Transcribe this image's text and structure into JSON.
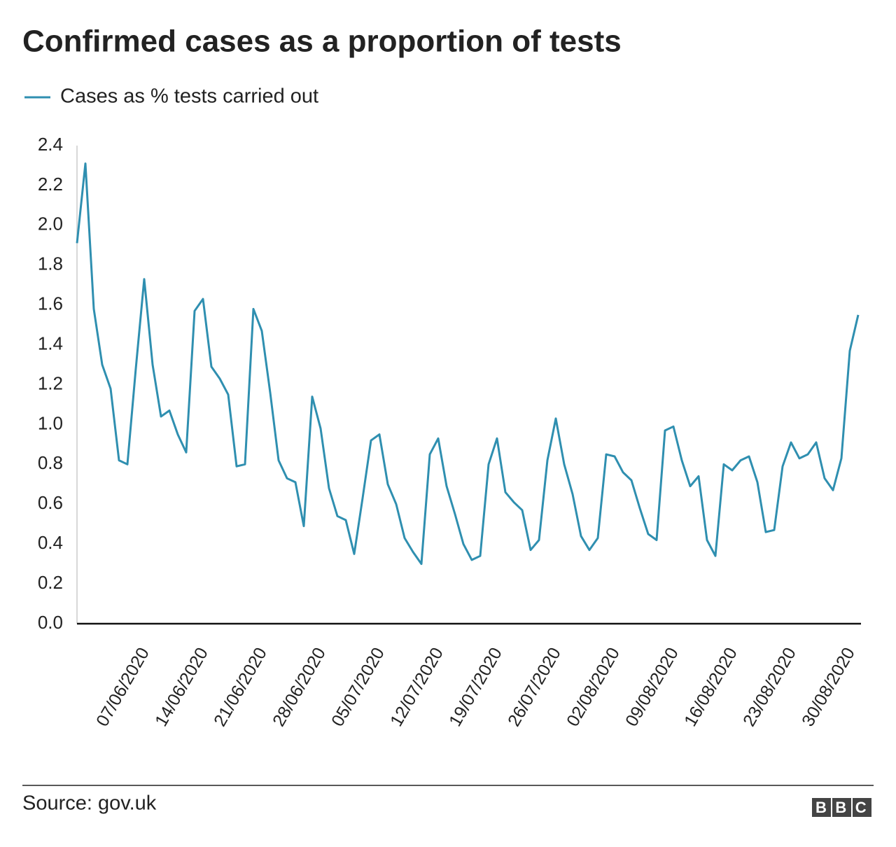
{
  "chart_data": {
    "type": "line",
    "title": "Confirmed cases as a proportion of tests",
    "source": "Source: gov.uk",
    "logo": "BBC",
    "categories": [
      null,
      null,
      null,
      null,
      null,
      null,
      null,
      null,
      "07/06/2020",
      null,
      null,
      null,
      null,
      null,
      null,
      "14/06/2020",
      null,
      null,
      null,
      null,
      null,
      null,
      "21/06/2020",
      null,
      null,
      null,
      null,
      null,
      null,
      "28/06/2020",
      null,
      null,
      null,
      null,
      null,
      null,
      "05/07/2020",
      null,
      null,
      null,
      null,
      null,
      null,
      "12/07/2020",
      null,
      null,
      null,
      null,
      null,
      null,
      "19/07/2020",
      null,
      null,
      null,
      null,
      null,
      null,
      "26/07/2020",
      null,
      null,
      null,
      null,
      null,
      null,
      "02/08/2020",
      null,
      null,
      null,
      null,
      null,
      null,
      "09/08/2020",
      null,
      null,
      null,
      null,
      null,
      null,
      "16/08/2020",
      null,
      null,
      null,
      null,
      null,
      null,
      "23/08/2020",
      null,
      null,
      null,
      null,
      null,
      null,
      "30/08/2020",
      null
    ],
    "series": [
      {
        "name": "Cases as % tests carried out",
        "color": "#2f8fb0",
        "values": [
          1.91,
          2.31,
          1.58,
          1.3,
          1.18,
          0.82,
          0.8,
          1.28,
          1.73,
          1.3,
          1.04,
          1.07,
          0.95,
          0.86,
          1.57,
          1.63,
          1.29,
          1.23,
          1.15,
          0.79,
          0.8,
          1.58,
          1.47,
          1.16,
          0.82,
          0.73,
          0.71,
          0.49,
          1.14,
          0.98,
          0.68,
          0.54,
          0.52,
          0.35,
          0.63,
          0.92,
          0.95,
          0.7,
          0.6,
          0.43,
          0.36,
          0.3,
          0.85,
          0.93,
          0.69,
          0.55,
          0.4,
          0.32,
          0.34,
          0.8,
          0.93,
          0.66,
          0.61,
          0.57,
          0.37,
          0.42,
          0.82,
          1.03,
          0.8,
          0.65,
          0.44,
          0.37,
          0.43,
          0.85,
          0.84,
          0.76,
          0.72,
          0.58,
          0.45,
          0.42,
          0.97,
          0.99,
          0.82,
          0.69,
          0.74,
          0.42,
          0.34,
          0.8,
          0.77,
          0.82,
          0.84,
          0.71,
          0.46,
          0.47,
          0.79,
          0.91,
          0.83,
          0.85,
          0.91,
          0.73,
          0.67,
          0.83,
          1.37,
          1.55
        ]
      }
    ],
    "ylim": [
      0,
      2.4
    ],
    "yticks": [
      {
        "value": 0,
        "label": "0.0"
      },
      0.2,
      0.4,
      0.6,
      0.8,
      {
        "value": 1,
        "label": "1.0"
      },
      1.2,
      1.4,
      1.6,
      1.8,
      {
        "value": 2,
        "label": "2.0"
      },
      2.2,
      2.4
    ],
    "grid": false
  }
}
